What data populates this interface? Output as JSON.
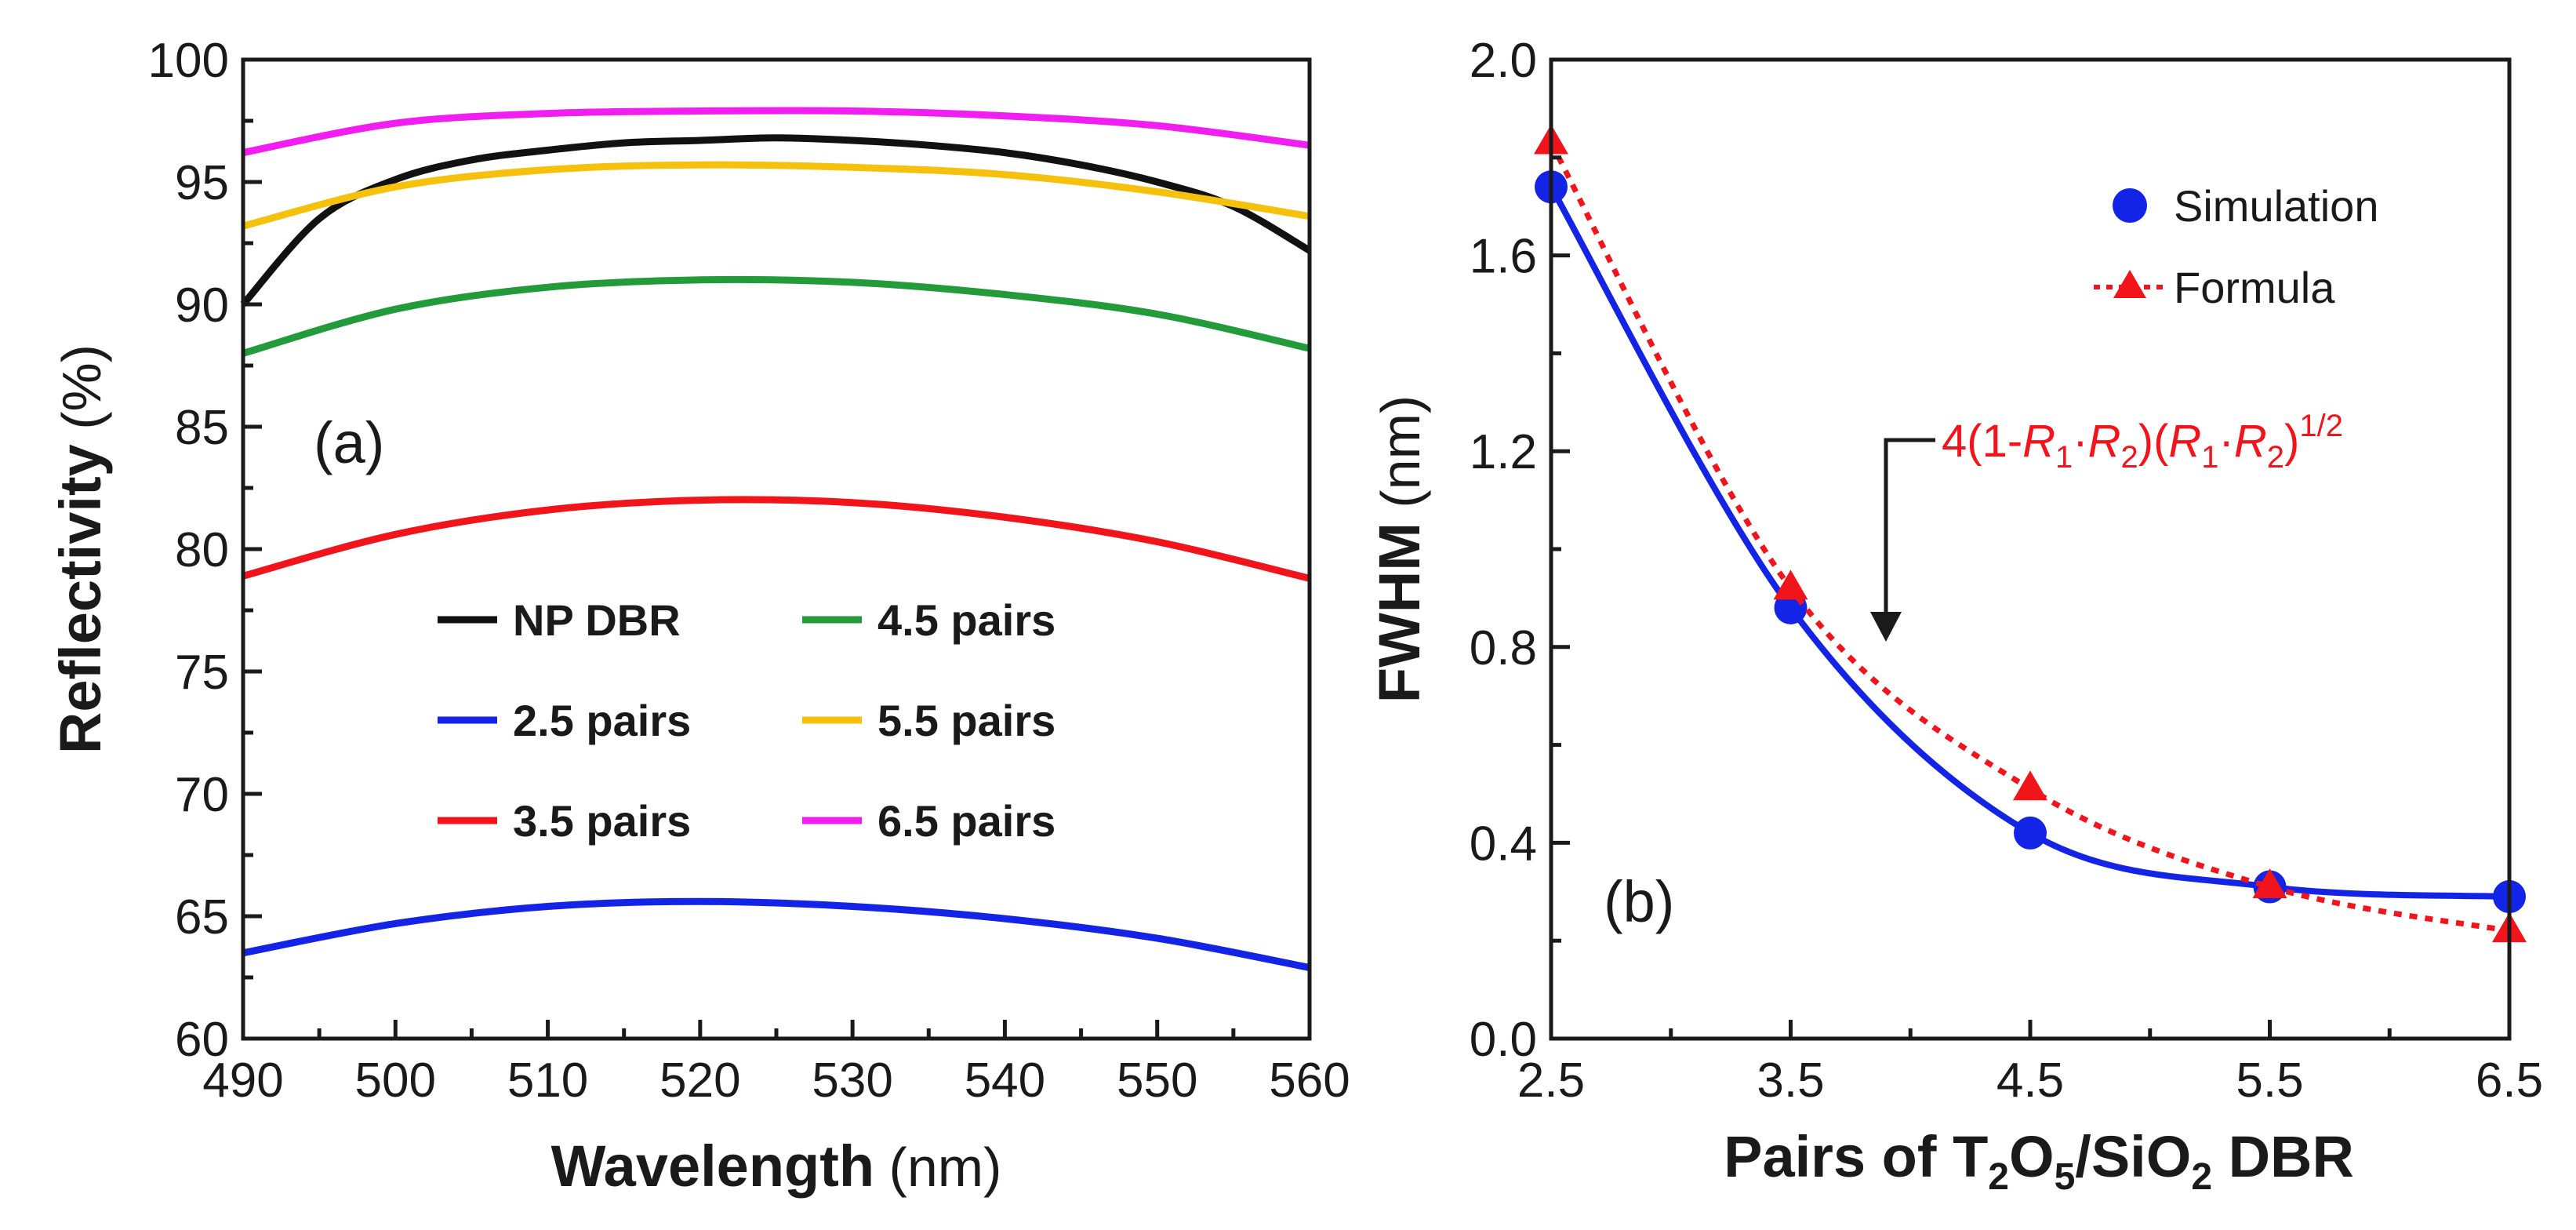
{
  "colors": {
    "np_dbr": "#111111",
    "pairs_2_5": "#1424e6",
    "pairs_3_5": "#f2141b",
    "pairs_4_5": "#239b3a",
    "pairs_5_5": "#f5c10d",
    "pairs_6_5": "#f01ef0",
    "simulation": "#1424e6",
    "formula": "#f2141b",
    "annotation": "#f2141b"
  },
  "chart_data": [
    {
      "panel": "a",
      "type": "line",
      "panel_label": "(a)",
      "xlabel_bold": "Wavelength",
      "xlabel_unit": "(nm)",
      "ylabel_bold": "Reflectivity",
      "ylabel_unit": "(%)",
      "xlim": [
        490,
        560
      ],
      "ylim": [
        60,
        100
      ],
      "xticks": [
        "490",
        "500",
        "510",
        "520",
        "530",
        "540",
        "550",
        "560"
      ],
      "yticks": [
        "60",
        "65",
        "70",
        "75",
        "80",
        "85",
        "90",
        "95",
        "100"
      ],
      "grid": false,
      "legend_position": "center",
      "series": [
        {
          "name": "NP DBR",
          "color_key": "np_dbr",
          "x": [
            490,
            495,
            500,
            505,
            510,
            515,
            520,
            525,
            530,
            535,
            540,
            545,
            550,
            555,
            560
          ],
          "y": [
            90.0,
            93.5,
            95.1,
            95.9,
            96.3,
            96.6,
            96.7,
            96.8,
            96.7,
            96.5,
            96.2,
            95.7,
            95.0,
            94.0,
            92.2
          ]
        },
        {
          "name": "2.5 pairs",
          "color_key": "pairs_2_5",
          "x": [
            490,
            500,
            510,
            520,
            530,
            540,
            550,
            560
          ],
          "y": [
            63.5,
            64.7,
            65.4,
            65.6,
            65.4,
            64.9,
            64.1,
            62.9
          ]
        },
        {
          "name": "3.5 pairs",
          "color_key": "pairs_3_5",
          "x": [
            490,
            500,
            510,
            520,
            530,
            540,
            550,
            560
          ],
          "y": [
            78.9,
            80.6,
            81.6,
            82.0,
            81.9,
            81.3,
            80.3,
            78.8
          ]
        },
        {
          "name": "4.5 pairs",
          "color_key": "pairs_4_5",
          "x": [
            490,
            500,
            510,
            520,
            530,
            540,
            550,
            560
          ],
          "y": [
            88.0,
            89.8,
            90.7,
            91.0,
            90.9,
            90.4,
            89.6,
            88.2
          ]
        },
        {
          "name": "5.5 pairs",
          "color_key": "pairs_5_5",
          "x": [
            490,
            500,
            510,
            520,
            530,
            540,
            550,
            560
          ],
          "y": [
            93.2,
            94.8,
            95.5,
            95.7,
            95.6,
            95.3,
            94.6,
            93.6
          ]
        },
        {
          "name": "6.5 pairs",
          "color_key": "pairs_6_5",
          "x": [
            490,
            500,
            510,
            520,
            530,
            540,
            550,
            560
          ],
          "y": [
            96.2,
            97.4,
            97.8,
            97.9,
            97.9,
            97.7,
            97.3,
            96.5
          ]
        }
      ]
    },
    {
      "panel": "b",
      "type": "scatter",
      "panel_label": "(b)",
      "xlabel": "Pairs of T",
      "xlabel_sub1": "2",
      "xlabel_mid": "O",
      "xlabel_sub2": "5",
      "xlabel_mid2": "/SiO",
      "xlabel_sub3": "2",
      "xlabel_end": " DBR",
      "ylabel_bold": "FWHM",
      "ylabel_unit": "(nm)",
      "xlim": [
        2.5,
        6.5
      ],
      "ylim": [
        0.0,
        2.0
      ],
      "xticks": [
        "2.5",
        "3.5",
        "4.5",
        "5.5",
        "6.5"
      ],
      "yticks": [
        "0.0",
        "0.4",
        "0.8",
        "1.2",
        "1.6",
        "2.0"
      ],
      "grid": false,
      "legend_position": "top-right",
      "series": [
        {
          "name": "Simulation",
          "color_key": "simulation",
          "marker": "circle",
          "line": "solid-spline",
          "x": [
            2.5,
            3.5,
            4.5,
            5.5,
            6.5
          ],
          "y": [
            1.74,
            0.88,
            0.42,
            0.31,
            0.29
          ]
        },
        {
          "name": "Formula",
          "color_key": "formula",
          "marker": "triangle",
          "line": "dotted",
          "x": [
            2.5,
            3.5,
            4.5,
            5.5,
            6.5
          ],
          "y": [
            1.83,
            0.92,
            0.51,
            0.31,
            0.22
          ]
        }
      ],
      "annotation": {
        "prefix": "4(1-",
        "r1a": "R",
        "s1a": "1",
        "dot1": "·",
        "r2a": "R",
        "s2a": "2",
        "mid": ")(",
        "r1b": "R",
        "s1b": "1",
        "dot2": "·",
        "r2b": "R",
        "s2b": "2",
        "close": ")",
        "exponent": "1/2"
      }
    }
  ]
}
